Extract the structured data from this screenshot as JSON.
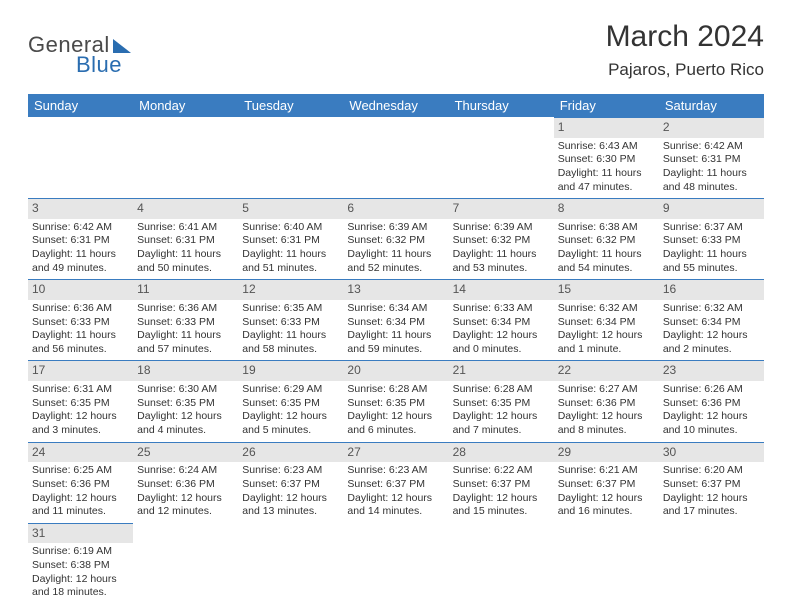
{
  "logo": {
    "part1": "General",
    "part2": "Blue"
  },
  "title": "March 2024",
  "location": "Pajaros, Puerto Rico",
  "colors": {
    "header_bg": "#3a7cc0",
    "header_text": "#ffffff",
    "daynum_bg": "#e6e6e6",
    "daynum_border": "#3a7cc0",
    "body_text": "#333333",
    "logo_gray": "#4a4a4a",
    "logo_blue": "#2a6db0"
  },
  "weekdays": [
    "Sunday",
    "Monday",
    "Tuesday",
    "Wednesday",
    "Thursday",
    "Friday",
    "Saturday"
  ],
  "weeks": [
    [
      null,
      null,
      null,
      null,
      null,
      {
        "n": "1",
        "sunrise": "6:43 AM",
        "sunset": "6:30 PM",
        "day_h": "11",
        "day_m": "47"
      },
      {
        "n": "2",
        "sunrise": "6:42 AM",
        "sunset": "6:31 PM",
        "day_h": "11",
        "day_m": "48"
      }
    ],
    [
      {
        "n": "3",
        "sunrise": "6:42 AM",
        "sunset": "6:31 PM",
        "day_h": "11",
        "day_m": "49"
      },
      {
        "n": "4",
        "sunrise": "6:41 AM",
        "sunset": "6:31 PM",
        "day_h": "11",
        "day_m": "50"
      },
      {
        "n": "5",
        "sunrise": "6:40 AM",
        "sunset": "6:31 PM",
        "day_h": "11",
        "day_m": "51"
      },
      {
        "n": "6",
        "sunrise": "6:39 AM",
        "sunset": "6:32 PM",
        "day_h": "11",
        "day_m": "52"
      },
      {
        "n": "7",
        "sunrise": "6:39 AM",
        "sunset": "6:32 PM",
        "day_h": "11",
        "day_m": "53"
      },
      {
        "n": "8",
        "sunrise": "6:38 AM",
        "sunset": "6:32 PM",
        "day_h": "11",
        "day_m": "54"
      },
      {
        "n": "9",
        "sunrise": "6:37 AM",
        "sunset": "6:33 PM",
        "day_h": "11",
        "day_m": "55"
      }
    ],
    [
      {
        "n": "10",
        "sunrise": "6:36 AM",
        "sunset": "6:33 PM",
        "day_h": "11",
        "day_m": "56"
      },
      {
        "n": "11",
        "sunrise": "6:36 AM",
        "sunset": "6:33 PM",
        "day_h": "11",
        "day_m": "57"
      },
      {
        "n": "12",
        "sunrise": "6:35 AM",
        "sunset": "6:33 PM",
        "day_h": "11",
        "day_m": "58"
      },
      {
        "n": "13",
        "sunrise": "6:34 AM",
        "sunset": "6:34 PM",
        "day_h": "11",
        "day_m": "59"
      },
      {
        "n": "14",
        "sunrise": "6:33 AM",
        "sunset": "6:34 PM",
        "day_h": "12",
        "day_m": "0"
      },
      {
        "n": "15",
        "sunrise": "6:32 AM",
        "sunset": "6:34 PM",
        "day_h": "12",
        "day_m": "1",
        "min_label": "minute"
      },
      {
        "n": "16",
        "sunrise": "6:32 AM",
        "sunset": "6:34 PM",
        "day_h": "12",
        "day_m": "2"
      }
    ],
    [
      {
        "n": "17",
        "sunrise": "6:31 AM",
        "sunset": "6:35 PM",
        "day_h": "12",
        "day_m": "3"
      },
      {
        "n": "18",
        "sunrise": "6:30 AM",
        "sunset": "6:35 PM",
        "day_h": "12",
        "day_m": "4"
      },
      {
        "n": "19",
        "sunrise": "6:29 AM",
        "sunset": "6:35 PM",
        "day_h": "12",
        "day_m": "5"
      },
      {
        "n": "20",
        "sunrise": "6:28 AM",
        "sunset": "6:35 PM",
        "day_h": "12",
        "day_m": "6"
      },
      {
        "n": "21",
        "sunrise": "6:28 AM",
        "sunset": "6:35 PM",
        "day_h": "12",
        "day_m": "7"
      },
      {
        "n": "22",
        "sunrise": "6:27 AM",
        "sunset": "6:36 PM",
        "day_h": "12",
        "day_m": "8"
      },
      {
        "n": "23",
        "sunrise": "6:26 AM",
        "sunset": "6:36 PM",
        "day_h": "12",
        "day_m": "10"
      }
    ],
    [
      {
        "n": "24",
        "sunrise": "6:25 AM",
        "sunset": "6:36 PM",
        "day_h": "12",
        "day_m": "11"
      },
      {
        "n": "25",
        "sunrise": "6:24 AM",
        "sunset": "6:36 PM",
        "day_h": "12",
        "day_m": "12"
      },
      {
        "n": "26",
        "sunrise": "6:23 AM",
        "sunset": "6:37 PM",
        "day_h": "12",
        "day_m": "13"
      },
      {
        "n": "27",
        "sunrise": "6:23 AM",
        "sunset": "6:37 PM",
        "day_h": "12",
        "day_m": "14"
      },
      {
        "n": "28",
        "sunrise": "6:22 AM",
        "sunset": "6:37 PM",
        "day_h": "12",
        "day_m": "15"
      },
      {
        "n": "29",
        "sunrise": "6:21 AM",
        "sunset": "6:37 PM",
        "day_h": "12",
        "day_m": "16"
      },
      {
        "n": "30",
        "sunrise": "6:20 AM",
        "sunset": "6:37 PM",
        "day_h": "12",
        "day_m": "17"
      }
    ],
    [
      {
        "n": "31",
        "sunrise": "6:19 AM",
        "sunset": "6:38 PM",
        "day_h": "12",
        "day_m": "18"
      },
      null,
      null,
      null,
      null,
      null,
      null
    ]
  ]
}
